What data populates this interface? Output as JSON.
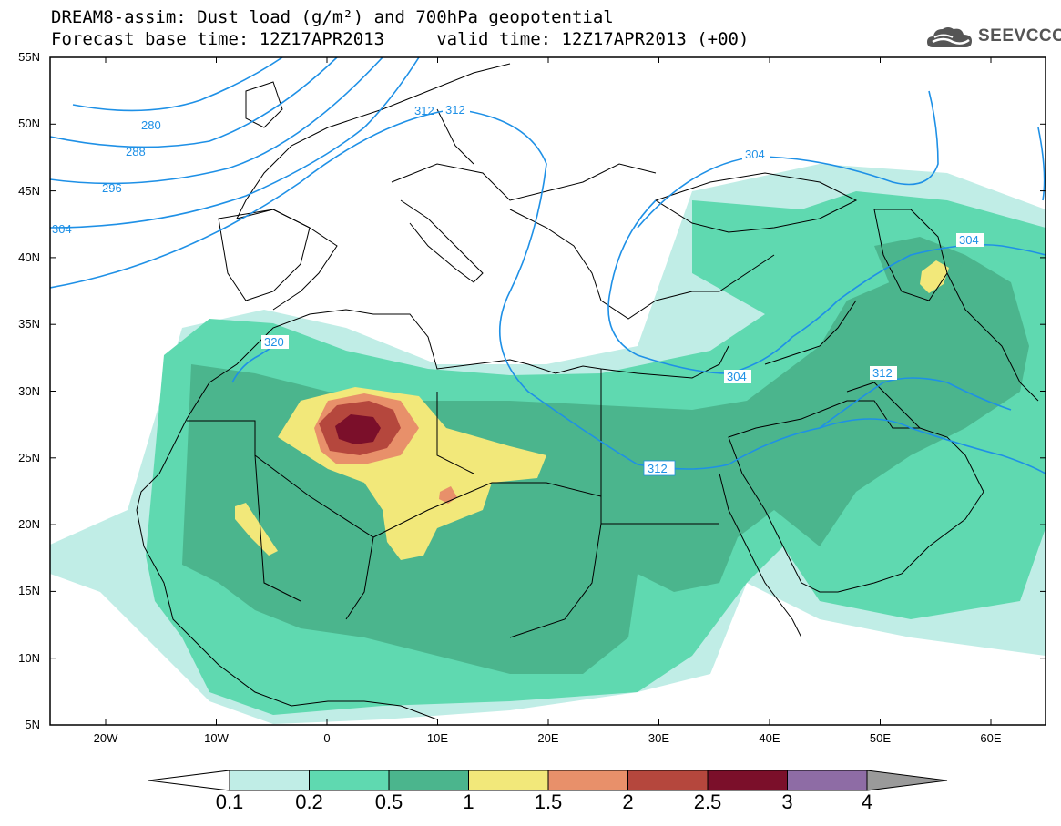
{
  "header": {
    "title_line1": "DREAM8-assim: Dust load (g/m²) and 700hPa geopotential",
    "title_line2": "Forecast base time: 12Z17APR2013     valid time: 12Z17APR2013 (+00)",
    "logo_text": "SEEVCCC"
  },
  "map": {
    "lat_ticks": [
      "55N",
      "50N",
      "45N",
      "40N",
      "35N",
      "30N",
      "25N",
      "20N",
      "15N",
      "10N",
      "5N"
    ],
    "lon_ticks": [
      "20W",
      "10W",
      "0",
      "10E",
      "20E",
      "30E",
      "40E",
      "50E",
      "60E"
    ],
    "contour_labels": [
      "280",
      "288",
      "296",
      "304",
      "312",
      "320",
      "304",
      "304",
      "304",
      "312",
      "312"
    ],
    "colors": {
      "contour": "#1e90e6",
      "c0_1": "#c0ede6",
      "c0_2": "#5fd9b0",
      "c0_5": "#4bb58d",
      "c1": "#f2e87a",
      "c1_5": "#e8906a",
      "c2": "#b5473d",
      "c2_5": "#7b0f2a",
      "c3": "#8e6ca5",
      "c4": "#9a9a9a"
    }
  },
  "colorbar": {
    "labels": [
      "0.1",
      "0.2",
      "0.5",
      "1",
      "1.5",
      "2",
      "2.5",
      "3",
      "4"
    ],
    "colors": [
      "#c0ede6",
      "#5fd9b0",
      "#4bb58d",
      "#f2e87a",
      "#e8906a",
      "#b5473d",
      "#7b0f2a",
      "#8e6ca5",
      "#9a9a9a"
    ]
  }
}
